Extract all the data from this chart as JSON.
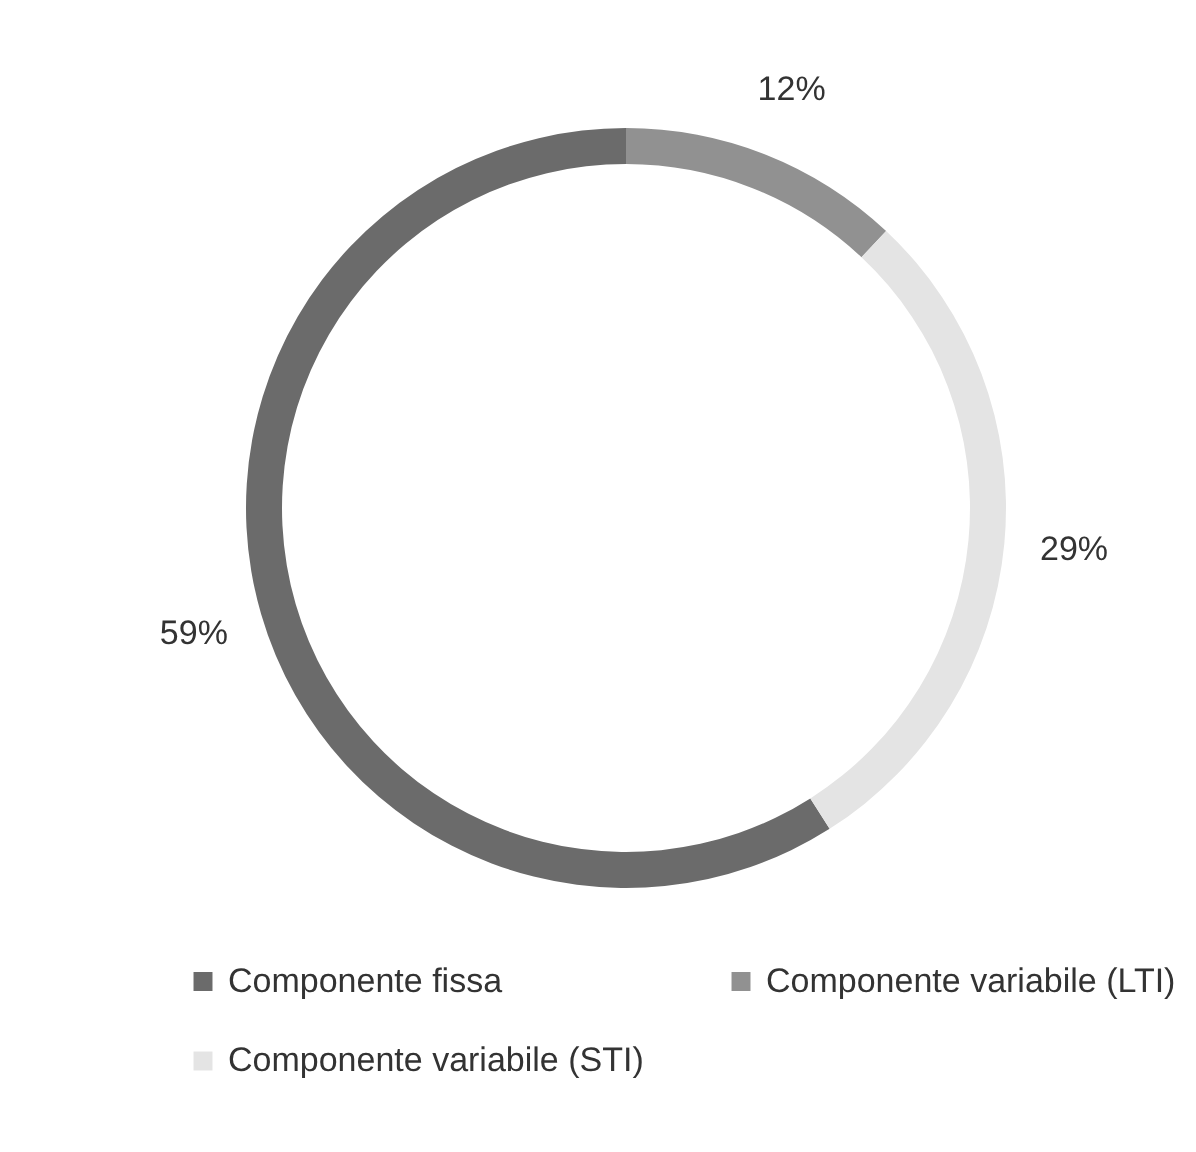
{
  "chart_data": {
    "type": "donut",
    "categories": [
      "Componente fissa",
      "Componente variabile (LTI)",
      "Componente variabile (STI)"
    ],
    "values": [
      59,
      12,
      29
    ],
    "colors": [
      "#6b6b6b",
      "#919191",
      "#e4e4e4"
    ],
    "value_labels": [
      "59%",
      "12%",
      "29%"
    ],
    "legend": "bottom"
  }
}
